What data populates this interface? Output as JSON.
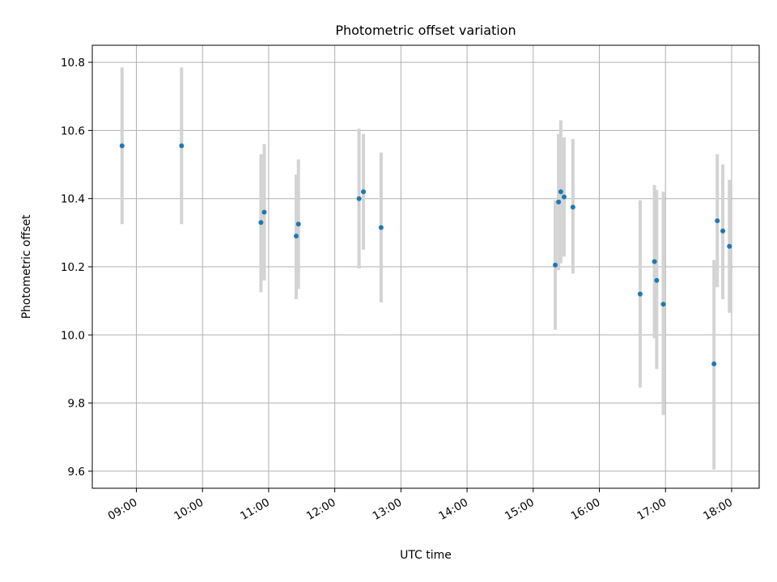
{
  "chart_data": {
    "type": "scatter",
    "title": "Photometric offset variation",
    "xlabel": "UTC time",
    "ylabel": "Photometric offset",
    "x_axis": "time",
    "xlim": [
      "08:20",
      "18:25"
    ],
    "ylim": [
      9.55,
      10.85
    ],
    "x_ticks": [
      "09:00",
      "10:00",
      "11:00",
      "12:00",
      "13:00",
      "14:00",
      "15:00",
      "16:00",
      "17:00",
      "18:00"
    ],
    "y_ticks": [
      9.6,
      9.8,
      10.0,
      10.2,
      10.4,
      10.6,
      10.8
    ],
    "y_tick_labels": [
      "9.6",
      "9.8",
      "10.0",
      "10.2",
      "10.4",
      "10.6",
      "10.8"
    ],
    "grid": true,
    "point_color": "#1f77b4",
    "errorbar_color": "#d3d3d3",
    "points": [
      {
        "x": "08:47",
        "y": 10.555,
        "ylow": 10.325,
        "yhigh": 10.785
      },
      {
        "x": "09:41",
        "y": 10.555,
        "ylow": 10.325,
        "yhigh": 10.785
      },
      {
        "x": "10:53",
        "y": 10.33,
        "ylow": 10.125,
        "yhigh": 10.53
      },
      {
        "x": "10:56",
        "y": 10.36,
        "ylow": 10.16,
        "yhigh": 10.56
      },
      {
        "x": "11:25",
        "y": 10.29,
        "ylow": 10.105,
        "yhigh": 10.47
      },
      {
        "x": "11:27",
        "y": 10.325,
        "ylow": 10.135,
        "yhigh": 10.515
      },
      {
        "x": "12:22",
        "y": 10.4,
        "ylow": 10.195,
        "yhigh": 10.605
      },
      {
        "x": "12:26",
        "y": 10.42,
        "ylow": 10.25,
        "yhigh": 10.59
      },
      {
        "x": "12:42",
        "y": 10.315,
        "ylow": 10.095,
        "yhigh": 10.535
      },
      {
        "x": "15:20",
        "y": 10.205,
        "ylow": 10.015,
        "yhigh": 10.395
      },
      {
        "x": "15:23",
        "y": 10.39,
        "ylow": 10.19,
        "yhigh": 10.59
      },
      {
        "x": "15:25",
        "y": 10.42,
        "ylow": 10.21,
        "yhigh": 10.63
      },
      {
        "x": "15:28",
        "y": 10.405,
        "ylow": 10.23,
        "yhigh": 10.58
      },
      {
        "x": "15:36",
        "y": 10.375,
        "ylow": 10.18,
        "yhigh": 10.575
      },
      {
        "x": "16:37",
        "y": 10.12,
        "ylow": 9.845,
        "yhigh": 10.395
      },
      {
        "x": "16:50",
        "y": 10.215,
        "ylow": 9.99,
        "yhigh": 10.44
      },
      {
        "x": "16:52",
        "y": 10.16,
        "ylow": 9.9,
        "yhigh": 10.425
      },
      {
        "x": "16:58",
        "y": 10.09,
        "ylow": 9.765,
        "yhigh": 10.42
      },
      {
        "x": "17:44",
        "y": 9.915,
        "ylow": 9.605,
        "yhigh": 10.22
      },
      {
        "x": "17:47",
        "y": 10.335,
        "ylow": 10.14,
        "yhigh": 10.53
      },
      {
        "x": "17:52",
        "y": 10.305,
        "ylow": 10.105,
        "yhigh": 10.5
      },
      {
        "x": "17:58",
        "y": 10.26,
        "ylow": 10.065,
        "yhigh": 10.455
      }
    ]
  }
}
